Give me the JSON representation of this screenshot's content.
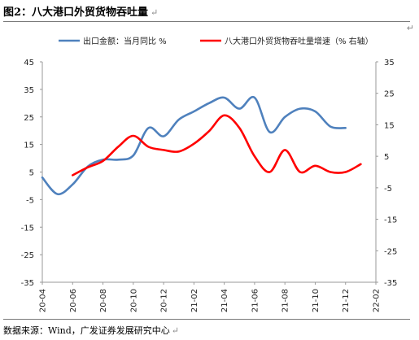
{
  "header": {
    "title": "图2：八大港口外贸货物吞吐量",
    "title_mark": "↵"
  },
  "footer": {
    "source": "数据来源：Wind，广发证券发展研究中心",
    "source_mark": "↵"
  },
  "side_mark": "↵",
  "chart_data": {
    "type": "line",
    "title": "图2：八大港口外贸货物吞吐量",
    "x_ticks": [
      "20-04",
      "20-06",
      "20-08",
      "20-10",
      "20-12",
      "21-02",
      "21-04",
      "21-06",
      "21-08",
      "21-10",
      "21-12",
      "22-02"
    ],
    "x_range": [
      "2020-04",
      "2022-02"
    ],
    "y_left": {
      "min": -35,
      "max": 45,
      "ticks": [
        45,
        35,
        25,
        15,
        5,
        -5,
        -15,
        -25,
        -35
      ]
    },
    "y_right": {
      "min": -35,
      "max": 35,
      "ticks": [
        35,
        25,
        15,
        5,
        -5,
        -15,
        -25,
        -35
      ]
    },
    "grid": false,
    "legend_position": "top",
    "series": [
      {
        "name": "出口金额：当月同比 %",
        "axis": "left",
        "color": "#4f81bd",
        "x": [
          "2020-04",
          "2020-05",
          "2020-06",
          "2020-07",
          "2020-08",
          "2020-09",
          "2020-10",
          "2020-11",
          "2020-12",
          "2021-01",
          "2021-02",
          "2021-03",
          "2021-04",
          "2021-05",
          "2021-06",
          "2021-07",
          "2021-08",
          "2021-09",
          "2021-10",
          "2021-11",
          "2021-12"
        ],
        "values": [
          3.0,
          -3.0,
          0.5,
          7.0,
          9.5,
          9.5,
          11.0,
          21.0,
          18.0,
          24.0,
          27.0,
          30.0,
          32.0,
          28.0,
          32.0,
          19.5,
          25.0,
          28.0,
          27.0,
          21.5,
          21.0
        ]
      },
      {
        "name": "八大港口外贸货物吞吐量增速（% 右轴）",
        "axis": "right",
        "color": "#ff0000",
        "x": [
          "2020-06",
          "2020-07",
          "2020-08",
          "2020-09",
          "2020-10",
          "2020-11",
          "2020-12",
          "2021-01",
          "2021-02",
          "2021-03",
          "2021-04",
          "2021-05",
          "2021-06",
          "2021-07",
          "2021-08",
          "2021-09",
          "2021-10",
          "2021-11",
          "2021-12",
          "2022-01"
        ],
        "values": [
          -1.0,
          1.5,
          3.5,
          8.0,
          11.5,
          8.0,
          7.0,
          6.5,
          9.0,
          13.0,
          18.0,
          14.0,
          5.0,
          0.0,
          7.0,
          0.0,
          2.0,
          0.0,
          0.0,
          2.5
        ]
      }
    ]
  }
}
